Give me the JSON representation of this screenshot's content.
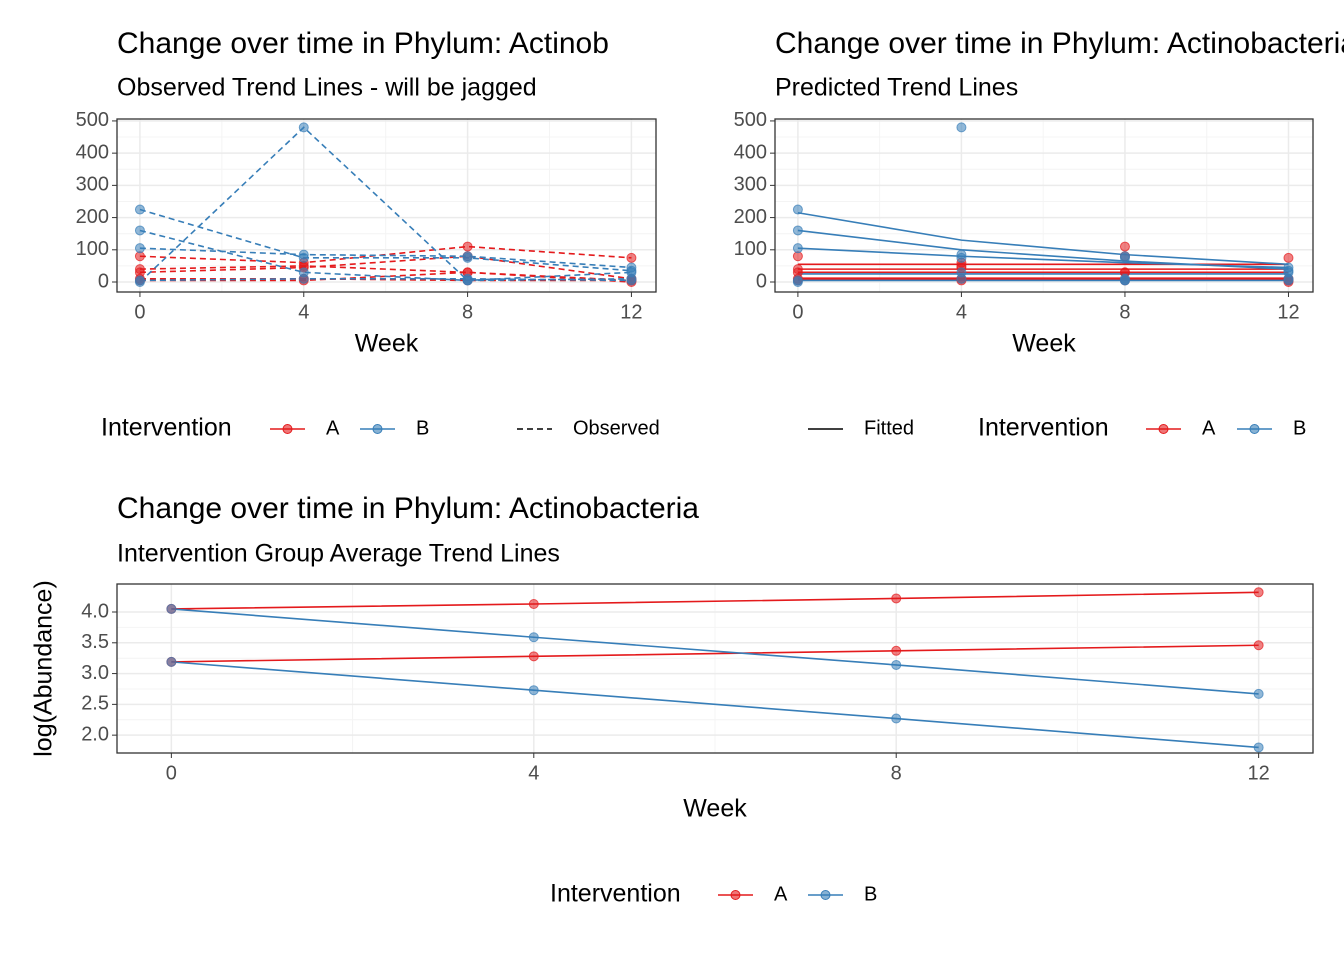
{
  "chart_data": [
    {
      "type": "line",
      "title": "Change over time in Phylum: Actinob",
      "subtitle": "Observed Trend Lines - will be jagged",
      "xlabel": "Week",
      "x": [
        0,
        4,
        8,
        12
      ],
      "xlim": [
        -0.56,
        12.6
      ],
      "xticks": [
        0,
        4,
        8,
        12
      ],
      "ylim": [
        -31,
        506
      ],
      "yticks": [
        0,
        100,
        200,
        300,
        400,
        500
      ],
      "grid": true,
      "line_style": "dashed",
      "legend_title": "Intervention",
      "linetype_label": "Observed",
      "series": [
        {
          "name": "A",
          "color": "#E41A1C",
          "values": [
            80,
            60,
            110,
            75
          ]
        },
        {
          "name": "A",
          "color": "#E41A1C",
          "values": [
            30,
            45,
            80,
            10
          ]
        },
        {
          "name": "A",
          "color": "#E41A1C",
          "values": [
            10,
            10,
            5,
            5
          ]
        },
        {
          "name": "A",
          "color": "#E41A1C",
          "values": [
            5,
            5,
            30,
            5
          ]
        },
        {
          "name": "A",
          "color": "#E41A1C",
          "values": [
            40,
            50,
            30,
            0
          ]
        },
        {
          "name": "B",
          "color": "#377EB8",
          "values": [
            225,
            75,
            75,
            35
          ]
        },
        {
          "name": "B",
          "color": "#377EB8",
          "values": [
            0,
            480,
            5,
            10
          ]
        },
        {
          "name": "B",
          "color": "#377EB8",
          "values": [
            105,
            85,
            80,
            45
          ]
        },
        {
          "name": "B",
          "color": "#377EB8",
          "values": [
            160,
            30,
            5,
            30
          ]
        },
        {
          "name": "B",
          "color": "#377EB8",
          "values": [
            5,
            10,
            10,
            5
          ]
        }
      ]
    },
    {
      "type": "line",
      "title": "Change over time in Phylum: Actinobacteria",
      "subtitle": "Predicted Trend Lines",
      "xlabel": "Week",
      "x": [
        0,
        4,
        8,
        12
      ],
      "xlim": [
        -0.56,
        12.6
      ],
      "xticks": [
        0,
        4,
        8,
        12
      ],
      "ylim": [
        -31,
        506
      ],
      "yticks": [
        0,
        100,
        200,
        300,
        400,
        500
      ],
      "grid": true,
      "line_style": "solid",
      "legend_title": "Intervention",
      "linetype_label": "Fitted",
      "series": [
        {
          "name": "A",
          "color": "#E41A1C",
          "values": [
            80,
            60,
            110,
            75
          ],
          "fitted": [
            55,
            55,
            55,
            55
          ]
        },
        {
          "name": "A",
          "color": "#E41A1C",
          "values": [
            30,
            45,
            80,
            10
          ],
          "fitted": [
            40,
            40,
            40,
            40
          ]
        },
        {
          "name": "A",
          "color": "#E41A1C",
          "values": [
            10,
            10,
            5,
            5
          ],
          "fitted": [
            8,
            8,
            8,
            8
          ]
        },
        {
          "name": "A",
          "color": "#E41A1C",
          "values": [
            5,
            5,
            30,
            5
          ],
          "fitted": [
            12,
            12,
            12,
            12
          ]
        },
        {
          "name": "A",
          "color": "#E41A1C",
          "values": [
            40,
            50,
            30,
            0
          ],
          "fitted": [
            30,
            30,
            30,
            30
          ]
        },
        {
          "name": "B",
          "color": "#377EB8",
          "values": [
            225,
            75,
            75,
            35
          ],
          "fitted": [
            215,
            130,
            85,
            55
          ]
        },
        {
          "name": "B",
          "color": "#377EB8",
          "values": [
            0,
            480,
            5,
            10
          ],
          "fitted": [
            25,
            25,
            25,
            25
          ]
        },
        {
          "name": "B",
          "color": "#377EB8",
          "values": [
            105,
            85,
            80,
            45
          ],
          "fitted": [
            105,
            80,
            60,
            45
          ]
        },
        {
          "name": "B",
          "color": "#377EB8",
          "values": [
            160,
            30,
            5,
            30
          ],
          "fitted": [
            160,
            100,
            65,
            40
          ]
        },
        {
          "name": "B",
          "color": "#377EB8",
          "values": [
            5,
            10,
            10,
            5
          ],
          "fitted": [
            5,
            5,
            5,
            5
          ]
        }
      ]
    },
    {
      "type": "line",
      "title": "Change over time in Phylum: Actinobacteria",
      "subtitle": "Intervention Group Average Trend Lines",
      "xlabel": "Week",
      "ylabel": "log(Abundance)",
      "x": [
        0,
        4,
        8,
        12
      ],
      "xlim": [
        -0.6,
        12.6
      ],
      "xticks": [
        0,
        4,
        8,
        12
      ],
      "ylim": [
        1.71,
        4.455
      ],
      "yticks": [
        {
          "value": 2,
          "label": "2.0"
        },
        2.5,
        {
          "value": 3,
          "label": "3.0"
        },
        3.5,
        {
          "value": 4,
          "label": "4.0"
        }
      ],
      "grid": true,
      "line_style": "solid",
      "legend_title": "Intervention",
      "series": [
        {
          "name": "A",
          "color": "#E41A1C",
          "values": [
            4.05,
            4.13,
            4.22,
            4.32
          ]
        },
        {
          "name": "A",
          "color": "#E41A1C",
          "values": [
            3.19,
            3.28,
            3.37,
            3.46
          ]
        },
        {
          "name": "B",
          "color": "#377EB8",
          "values": [
            4.05,
            3.59,
            3.14,
            2.67
          ]
        },
        {
          "name": "B",
          "color": "#377EB8",
          "values": [
            3.19,
            2.73,
            2.27,
            1.8
          ]
        }
      ]
    }
  ]
}
